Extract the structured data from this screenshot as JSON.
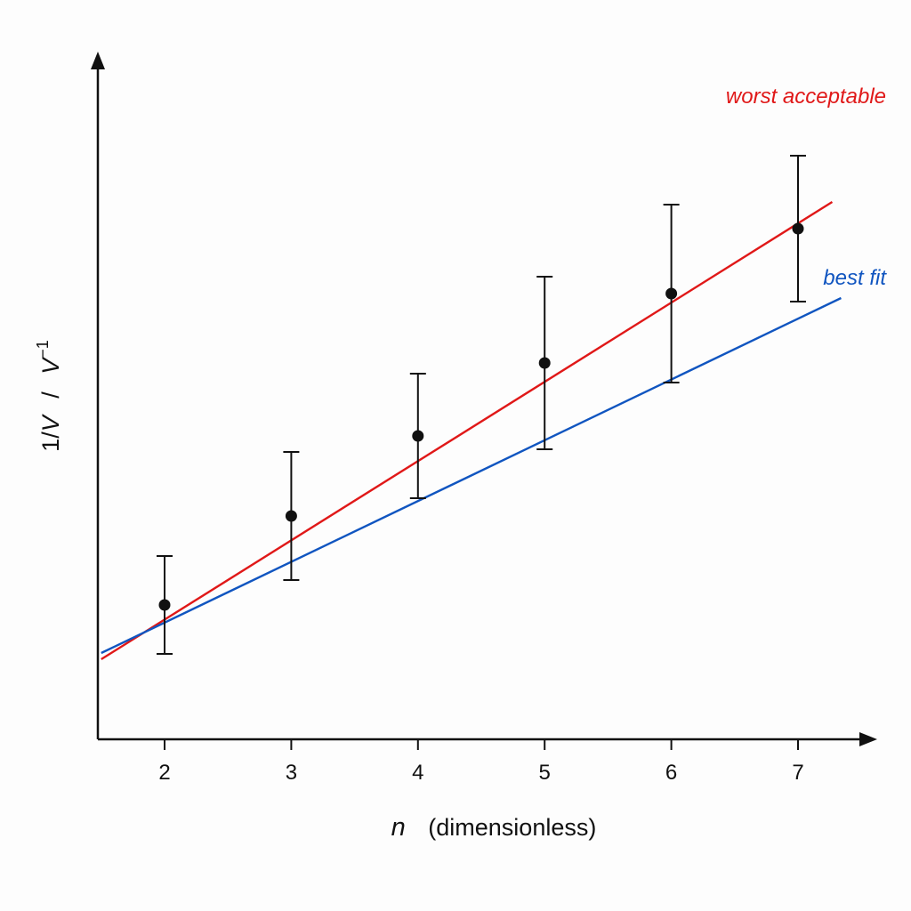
{
  "chart_data": {
    "type": "scatter",
    "title": "",
    "xlabel": {
      "symbol": "n",
      "unit": "(dimensionless)"
    },
    "ylabel": {
      "quantity": "1/",
      "symbol": "V",
      "separator": "/",
      "unit": "V",
      "unit_exponent": "−1"
    },
    "x_ticks": [
      "2",
      "3",
      "4",
      "5",
      "6",
      "7"
    ],
    "y_ticks": [],
    "grid": false,
    "x": [
      2,
      3,
      4,
      5,
      6,
      7
    ],
    "y": [
      1.0,
      2.0,
      2.9,
      3.72,
      4.5,
      5.23
    ],
    "y_error": [
      0.55,
      0.72,
      0.7,
      0.97,
      1.0,
      0.82
    ],
    "lines": [
      {
        "name": "worst acceptable",
        "color": "#e01818",
        "x": [
          1.5,
          7.27
        ],
        "y": [
          0.39,
          5.53
        ]
      },
      {
        "name": "best fit",
        "color": "#1055c0",
        "x": [
          1.5,
          7.34
        ],
        "y": [
          0.46,
          4.45
        ]
      }
    ],
    "colors": {
      "points": "#111111",
      "axes": "#111111"
    }
  }
}
